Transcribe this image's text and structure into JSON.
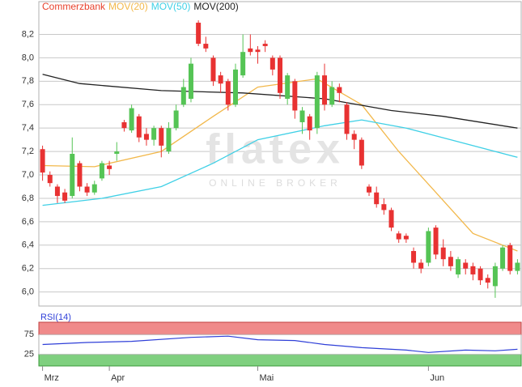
{
  "chart_data": [
    {
      "type": "candlestick",
      "name": "Commerzbank",
      "color": "#e8412c",
      "up_color": "#55c455",
      "down_color": "#e83232",
      "watermark": "flatex",
      "watermark_subtitle": "ONLINE BROKER",
      "open": [
        7.22,
        7.0,
        6.9,
        6.85,
        6.82,
        7.1,
        6.9,
        6.85,
        6.97,
        7.08,
        7.18,
        7.45,
        7.38,
        7.5,
        7.35,
        7.3,
        7.4,
        7.2,
        7.4,
        7.6,
        7.65,
        8.3,
        8.12,
        8.0,
        7.85,
        7.8,
        7.6,
        7.85,
        8.08,
        8.07,
        8.12,
        8.0,
        8.0,
        7.65,
        7.8,
        7.45,
        7.5,
        7.4,
        7.85,
        7.6,
        7.75,
        7.6,
        7.35,
        7.3,
        6.9,
        6.85,
        6.75,
        6.7,
        6.5,
        6.48,
        6.35,
        6.25,
        6.25,
        6.55,
        6.38,
        6.3,
        6.15,
        6.25,
        6.22,
        6.2,
        6.12,
        6.05,
        6.2,
        6.4,
        6.18
      ],
      "high": [
        7.25,
        7.03,
        6.92,
        6.88,
        7.32,
        7.12,
        6.93,
        6.95,
        7.12,
        7.12,
        7.28,
        7.47,
        7.6,
        7.52,
        7.4,
        7.42,
        7.42,
        7.45,
        7.6,
        7.82,
        8.0,
        8.32,
        8.18,
        8.02,
        7.88,
        7.82,
        7.95,
        8.2,
        8.2,
        8.1,
        8.15,
        8.02,
        8.02,
        7.87,
        7.82,
        7.58,
        7.52,
        7.88,
        7.95,
        7.8,
        7.78,
        7.62,
        7.38,
        7.32,
        6.92,
        6.9,
        6.8,
        6.72,
        6.52,
        6.5,
        6.38,
        6.28,
        6.55,
        6.57,
        6.45,
        6.35,
        6.3,
        6.28,
        6.25,
        6.22,
        6.15,
        6.25,
        6.4,
        6.42,
        6.28
      ],
      "low": [
        6.95,
        6.9,
        6.76,
        6.76,
        6.8,
        6.86,
        6.82,
        6.83,
        6.95,
        7.0,
        7.12,
        7.37,
        7.36,
        7.28,
        7.25,
        7.25,
        7.15,
        7.18,
        7.38,
        7.58,
        7.62,
        8.1,
        8.05,
        7.76,
        7.7,
        7.55,
        7.58,
        7.83,
        8.02,
        7.95,
        8.05,
        7.85,
        7.65,
        7.6,
        7.48,
        7.35,
        7.3,
        7.35,
        7.55,
        7.58,
        7.62,
        7.3,
        7.22,
        7.05,
        6.82,
        6.72,
        6.66,
        6.52,
        6.42,
        6.42,
        6.2,
        6.16,
        6.22,
        6.28,
        6.22,
        6.18,
        6.12,
        6.15,
        6.1,
        6.06,
        6.03,
        5.95,
        6.18,
        6.15,
        6.15
      ],
      "close": [
        7.02,
        6.93,
        6.82,
        6.78,
        7.18,
        6.9,
        6.85,
        6.92,
        7.1,
        7.05,
        7.2,
        7.4,
        7.57,
        7.32,
        7.3,
        7.4,
        7.25,
        7.4,
        7.55,
        7.75,
        7.95,
        8.12,
        8.08,
        7.8,
        7.78,
        7.6,
        7.9,
        8.05,
        8.05,
        8.05,
        8.1,
        7.9,
        7.7,
        7.85,
        7.55,
        7.55,
        7.38,
        7.85,
        7.6,
        7.75,
        7.7,
        7.35,
        7.3,
        7.08,
        6.85,
        6.75,
        6.7,
        6.55,
        6.45,
        6.45,
        6.25,
        6.2,
        6.52,
        6.32,
        6.28,
        6.22,
        6.28,
        6.2,
        6.15,
        6.1,
        6.08,
        6.22,
        6.38,
        6.18,
        6.25
      ],
      "series": [
        {
          "name": "MOV(20)",
          "color": "#f2b84b",
          "x": [
            0,
            7,
            16,
            23,
            29,
            37,
            43,
            48,
            53,
            58,
            64
          ],
          "values": [
            7.08,
            7.07,
            7.2,
            7.5,
            7.75,
            7.82,
            7.6,
            7.2,
            6.85,
            6.5,
            6.35
          ]
        },
        {
          "name": "MOV(50)",
          "color": "#3fd0e6",
          "x": [
            0,
            8,
            16,
            23,
            29,
            38,
            43,
            49,
            55,
            64
          ],
          "values": [
            6.74,
            6.8,
            6.9,
            7.1,
            7.3,
            7.42,
            7.47,
            7.4,
            7.3,
            7.15
          ]
        },
        {
          "name": "MOV(200)",
          "color": "#222222",
          "x": [
            0,
            5,
            16,
            27,
            38,
            47,
            54,
            64
          ],
          "values": [
            7.86,
            7.78,
            7.72,
            7.7,
            7.65,
            7.55,
            7.5,
            7.4
          ]
        }
      ],
      "xlim": [
        -0.5,
        64.5
      ],
      "xticks": [
        {
          "value": 0,
          "label": "Mrz"
        },
        {
          "value": 9,
          "label": "Apr"
        },
        {
          "value": 29,
          "label": "Mai"
        },
        {
          "value": 52,
          "label": "Jun"
        }
      ],
      "ylim": [
        5.88,
        8.48
      ],
      "yticks": [
        {
          "value": 6.0,
          "label": "6,0"
        },
        {
          "value": 6.2,
          "label": "6,2"
        },
        {
          "value": 6.4,
          "label": "6,4"
        },
        {
          "value": 6.6,
          "label": "6,6"
        },
        {
          "value": 6.8,
          "label": "6,8"
        },
        {
          "value": 7.0,
          "label": "7,0"
        },
        {
          "value": 7.2,
          "label": "7,2"
        },
        {
          "value": 7.4,
          "label": "7,4"
        },
        {
          "value": 7.6,
          "label": "7,6"
        },
        {
          "value": 7.8,
          "label": "7,8"
        },
        {
          "value": 8.0,
          "label": "8,0"
        },
        {
          "value": 8.2,
          "label": "8,2"
        }
      ],
      "grid": true
    },
    {
      "type": "line",
      "series": [
        {
          "name": "RSI(14)",
          "color": "#2f3fd8",
          "x": [
            0,
            6,
            12,
            20,
            25,
            29,
            34,
            38,
            43,
            49,
            52,
            57,
            61,
            64
          ],
          "values": [
            50,
            55,
            58,
            68,
            71,
            62,
            60,
            50,
            42,
            36,
            30,
            36,
            34,
            38
          ]
        }
      ],
      "overbought_color": "#f08a8a",
      "oversold_color": "#7fd07f",
      "xlim": [
        -0.5,
        64.5
      ],
      "ylim": [
        -4,
        106
      ],
      "yticks": [
        25,
        75
      ],
      "grid": true
    }
  ]
}
